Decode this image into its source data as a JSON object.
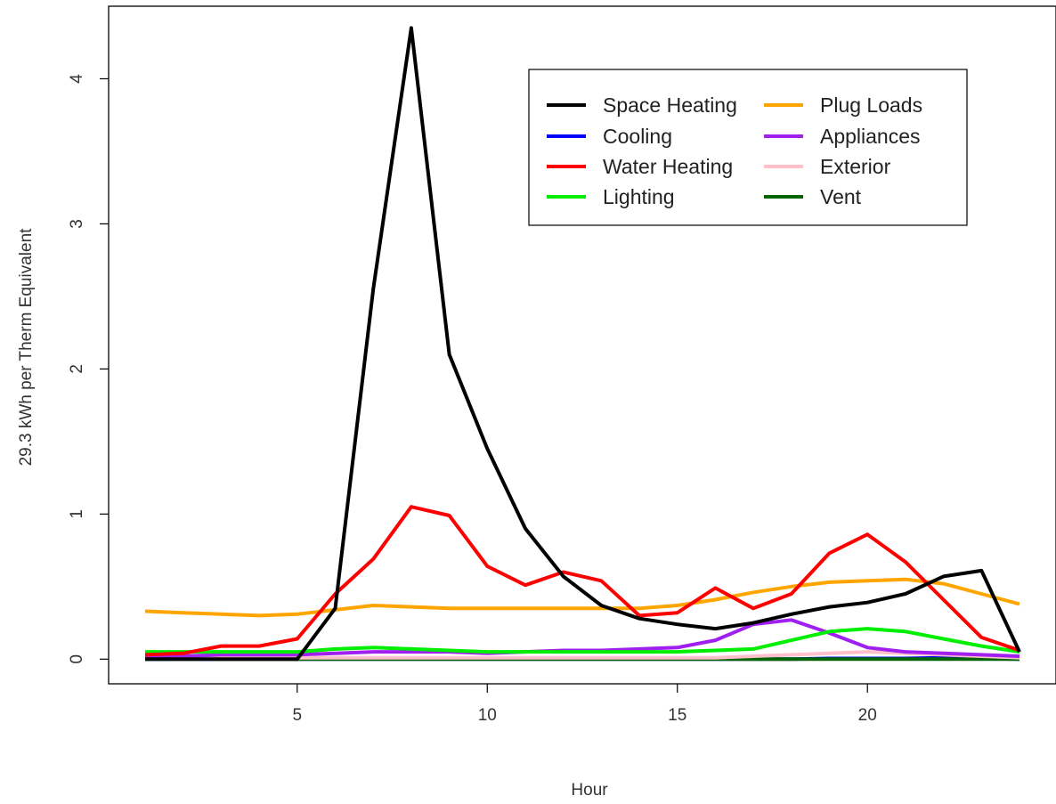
{
  "chart_data": {
    "type": "line",
    "title": "",
    "xlabel": "Hour",
    "ylabel": "29.3 kWh per Therm Equivalent",
    "xlim": [
      0.04,
      24.96
    ],
    "ylim": [
      -0.17,
      4.5
    ],
    "xticks": [
      5,
      10,
      15,
      20
    ],
    "xtick_labels": [
      "5",
      "10",
      "15",
      "20"
    ],
    "yticks": [
      0,
      1,
      2,
      3,
      4
    ],
    "ytick_labels": [
      "0",
      "1",
      "2",
      "3",
      "4"
    ],
    "grid": false,
    "legend_position": "top-right",
    "x": [
      1,
      2,
      3,
      4,
      5,
      6,
      7,
      8,
      9,
      10,
      11,
      12,
      13,
      14,
      15,
      16,
      17,
      18,
      19,
      20,
      21,
      22,
      23,
      24
    ],
    "series": [
      {
        "name": "Space Heating",
        "color": "#000000",
        "values": [
          0.0,
          0.0,
          0.0,
          0.0,
          0.0,
          0.35,
          2.55,
          4.35,
          2.1,
          1.45,
          0.9,
          0.57,
          0.37,
          0.28,
          0.24,
          0.21,
          0.25,
          0.31,
          0.36,
          0.39,
          0.45,
          0.57,
          0.61,
          0.05
        ]
      },
      {
        "name": "Cooling",
        "color": "#0000ff",
        "values": [
          0.0,
          0.0,
          0.0,
          0.0,
          0.0,
          0.0,
          0.0,
          0.0,
          0.0,
          0.0,
          0.0,
          0.0,
          0.0,
          0.0,
          0.0,
          0.0,
          0.0,
          0.0,
          0.005,
          0.005,
          0.005,
          0.01,
          0.005,
          0.0
        ]
      },
      {
        "name": "Water Heating",
        "color": "#ff0000",
        "values": [
          0.03,
          0.04,
          0.09,
          0.09,
          0.14,
          0.45,
          0.69,
          1.05,
          0.99,
          0.64,
          0.51,
          0.6,
          0.54,
          0.3,
          0.32,
          0.49,
          0.35,
          0.45,
          0.73,
          0.86,
          0.67,
          0.41,
          0.15,
          0.06
        ]
      },
      {
        "name": "Lighting",
        "color": "#00ee00",
        "values": [
          0.05,
          0.05,
          0.05,
          0.05,
          0.05,
          0.07,
          0.08,
          0.07,
          0.06,
          0.05,
          0.05,
          0.05,
          0.05,
          0.05,
          0.05,
          0.06,
          0.07,
          0.13,
          0.19,
          0.21,
          0.19,
          0.14,
          0.09,
          0.05
        ]
      },
      {
        "name": "Plug Loads",
        "color": "#ffa500",
        "values": [
          0.33,
          0.32,
          0.31,
          0.3,
          0.31,
          0.34,
          0.37,
          0.36,
          0.35,
          0.35,
          0.35,
          0.35,
          0.35,
          0.35,
          0.37,
          0.41,
          0.46,
          0.5,
          0.53,
          0.54,
          0.55,
          0.52,
          0.45,
          0.38
        ]
      },
      {
        "name": "Appliances",
        "color": "#a020f0",
        "values": [
          0.02,
          0.02,
          0.03,
          0.03,
          0.03,
          0.04,
          0.05,
          0.05,
          0.05,
          0.04,
          0.05,
          0.06,
          0.06,
          0.07,
          0.08,
          0.13,
          0.24,
          0.27,
          0.18,
          0.08,
          0.05,
          0.04,
          0.03,
          0.02
        ]
      },
      {
        "name": "Exterior",
        "color": "#ffc0cb",
        "values": [
          0.01,
          0.01,
          0.01,
          0.01,
          0.01,
          0.01,
          0.01,
          0.01,
          0.01,
          0.01,
          0.01,
          0.01,
          0.01,
          0.01,
          0.01,
          0.01,
          0.02,
          0.03,
          0.04,
          0.05,
          0.04,
          0.03,
          0.02,
          0.01
        ]
      },
      {
        "name": "Vent",
        "color": "#006400",
        "values": [
          0.0,
          0.0,
          0.0,
          0.0,
          0.0,
          0.0,
          0.0,
          0.0,
          0.0,
          0.0,
          0.0,
          0.0,
          0.0,
          0.0,
          0.0,
          0.0,
          0.0,
          0.0,
          0.0,
          0.0,
          0.0,
          0.0,
          0.0,
          0.0
        ]
      }
    ],
    "draw_order": [
      "Cooling",
      "Vent",
      "Exterior",
      "Appliances",
      "Lighting",
      "Plug Loads",
      "Water Heating",
      "Space Heating"
    ]
  }
}
